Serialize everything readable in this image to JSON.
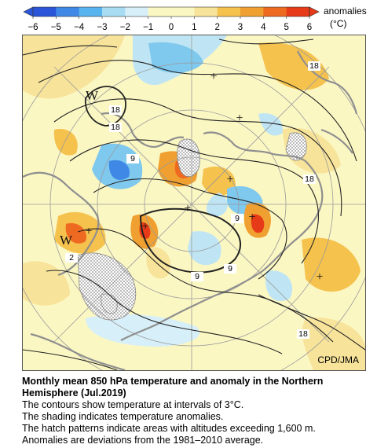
{
  "legend": {
    "ticks": [
      "−6",
      "−5",
      "−4",
      "−3",
      "−2",
      "−1",
      "0",
      "1",
      "2",
      "3",
      "4",
      "5",
      "6"
    ],
    "unit_label": "anomalies",
    "unit": "(°C)",
    "colors": [
      "#2b55d8",
      "#3f88e6",
      "#58b4ee",
      "#a8dcf3",
      "#d6eff8",
      "#fbf7c3",
      "#fbf7c3",
      "#f7e39a",
      "#f5c24e",
      "#f0a030",
      "#ee6a21",
      "#e63a18"
    ]
  },
  "map": {
    "credit": "CPD/JMA",
    "contour_labels": [
      "18",
      "18",
      "18",
      "18",
      "9",
      "9",
      "9",
      "9",
      "18",
      "2"
    ],
    "markers": [
      "W",
      "W",
      "+",
      "+",
      "+",
      "+",
      "+",
      "+",
      "+",
      "+"
    ]
  },
  "caption": {
    "title": "Monthly mean 850 hPa temperature and anomaly in the Northern Hemisphere (Jul.2019)",
    "line1": "The contours show temperature at intervals of 3°C.",
    "line2": "The shading indicates temperature anomalies.",
    "line3": "The hatch patterns indicate areas with altitudes exceeding 1,600 m.",
    "line4": "Anomalies are deviations from the 1981–2010 average."
  }
}
